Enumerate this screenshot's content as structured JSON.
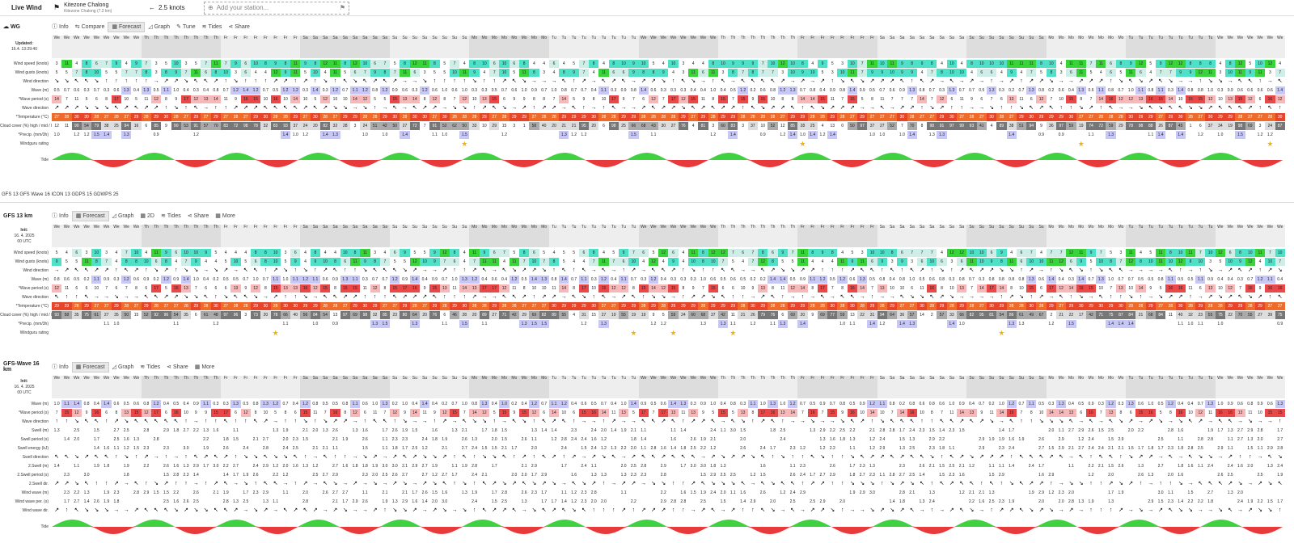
{
  "livebar": {
    "title": "Live Wind",
    "station_name": "Kitezone Chalong",
    "station_sub": "Kitezone Chalong (7.2 km)",
    "wind": "2.5 knots",
    "add_station_placeholder": "Add your station..."
  },
  "panel1": {
    "model": "WG",
    "tabs": [
      "Info",
      "Compare",
      "Forecast",
      "Graph",
      "Tune",
      "Tides",
      "Share"
    ],
    "active_tab": "Forecast",
    "updated_label": "Updated:",
    "updated_value": "16.4. 13:29:40",
    "labels": [
      "Wind speed (knots)",
      "Wind gusts (knots)",
      "Wind direction",
      "Wave (m)",
      "*Wave period (s)",
      "Wave direction",
      "*Temperature (°C)",
      "Cloud cover (%) high / mid / low",
      "*Precip. (mm/3h)",
      "Windguru rating",
      "Tide"
    ],
    "tide_times_top": [
      "12:03",
      "12:33",
      "12:53",
      "13:30",
      "14:20",
      "15:22",
      "17:37",
      "19:20",
      "20:12",
      "21:05",
      "21:45",
      "22:45",
      "11:22",
      "12:40"
    ],
    "tide_times_bottom": [
      "18:20",
      "18:53",
      "06:46",
      "19:25",
      "07:15",
      "20:05",
      "07:50",
      "21:15",
      "23:00",
      "11:15",
      "12:55",
      "14:20",
      "16:30",
      "07:00"
    ]
  },
  "models_line": "GFS 13   GFS Wave 16   ICON 13   GDPS 15   GDWPS 25",
  "panel2": {
    "model": "GFS 13 km",
    "tabs": [
      "Info",
      "Forecast",
      "Graph",
      "2D",
      "Tides",
      "Share",
      "More"
    ],
    "active_tab": "Forecast",
    "init_label": "Init:",
    "init_value": "16. 4. 2025",
    "init_utc": "00 UTC",
    "labels": [
      "Wind speed (knots)",
      "Wind gusts (knots)",
      "Wind direction",
      "Wave (m)",
      "*Wave period (s)",
      "Wave direction",
      "*Temperature (°C)",
      "Cloud cover (%) high / mid / low",
      "*Precip. (mm/3h)",
      "Windguru rating"
    ]
  },
  "panel3": {
    "model": "GFS-Wave 16 km",
    "tabs": [
      "Info",
      "Forecast",
      "Graph",
      "Tides",
      "Share",
      "More"
    ],
    "active_tab": "Forecast",
    "init_label": "Init:",
    "init_value": "16. 4. 2025",
    "init_utc": "00 UTC",
    "labels": [
      "Wave (m)",
      "*Wave period (s)",
      "Wave direction",
      "Swell (m)",
      "Swell period (s)",
      "Swell energy (kJ)",
      "Swell direction",
      "2.Swell (m)",
      "2.Swell period (s)",
      "2.Swell dir.",
      "Wind wave (m)",
      "Wind wave per. (s)",
      "Wind wave dir.",
      "Tide"
    ]
  },
  "days": [
    "We",
    "Th",
    "Fr",
    "Sa",
    "Su",
    "Mo",
    "Tu",
    "We",
    "Th",
    "Fr",
    "Sa",
    "Su",
    "Mo",
    "Tu",
    "We"
  ],
  "colors": {
    "wind_low": "#cfeee8",
    "wind_mid": "#4fe0c8",
    "wind_high": "#38d43a",
    "wind_peak": "#c8e600",
    "temp": "#e8442a",
    "temp2": "#f06a2a",
    "cloud_dark": "#777777",
    "cloud_mid": "#aaaaaa",
    "cloud_light": "#dddddd",
    "wave_pink": "#f6b8b8",
    "wave_red": "#e84848",
    "precip": "#c8c8f8",
    "tide_green": "#3fd13f",
    "tide_red": "#e83a3a"
  }
}
